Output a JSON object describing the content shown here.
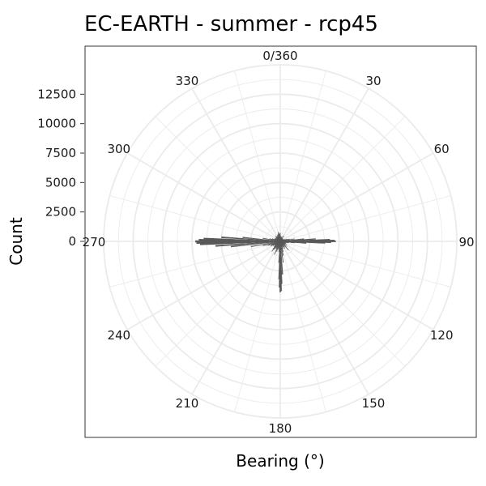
{
  "chart_data": {
    "type": "bar",
    "coord": "polar",
    "title": "EC-EARTH - summer - rcp45",
    "xlabel": "Bearing (°)",
    "ylabel": "Count",
    "y_ticks": [
      "0",
      "2500",
      "5000",
      "7500",
      "10000",
      "12500"
    ],
    "ylim": [
      0,
      15000
    ],
    "bearing_ticks": [
      "0/360",
      "30",
      "60",
      "90",
      "120",
      "150",
      "180",
      "210",
      "240",
      "270",
      "300",
      "330"
    ],
    "bin_width_deg": 1,
    "bearings": [
      0,
      4,
      8,
      12,
      16,
      20,
      24,
      28,
      32,
      36,
      40,
      44,
      48,
      52,
      56,
      60,
      64,
      68,
      72,
      76,
      80,
      84,
      86,
      88,
      89,
      90,
      91,
      92,
      94,
      96,
      100,
      104,
      108,
      112,
      116,
      120,
      124,
      128,
      132,
      136,
      140,
      144,
      148,
      152,
      156,
      160,
      164,
      168,
      172,
      176,
      178,
      179,
      180,
      181,
      182,
      184,
      188,
      192,
      196,
      200,
      204,
      208,
      212,
      216,
      220,
      224,
      228,
      232,
      236,
      240,
      244,
      248,
      252,
      256,
      260,
      264,
      266,
      268,
      269,
      270,
      271,
      272,
      274,
      276,
      280,
      284,
      288,
      292,
      296,
      300,
      304,
      308,
      312,
      316,
      320,
      324,
      328,
      332,
      336,
      340,
      344,
      348,
      352,
      356
    ],
    "values": [
      700,
      450,
      350,
      380,
      300,
      420,
      250,
      300,
      550,
      300,
      250,
      300,
      200,
      250,
      300,
      300,
      350,
      450,
      600,
      800,
      1200,
      2000,
      3000,
      4200,
      4600,
      4700,
      4300,
      3800,
      2200,
      1200,
      700,
      500,
      450,
      500,
      600,
      400,
      450,
      700,
      500,
      1000,
      350,
      600,
      700,
      500,
      400,
      650,
      900,
      1200,
      1800,
      2800,
      3600,
      4200,
      4300,
      3900,
      3200,
      1800,
      900,
      700,
      600,
      900,
      1200,
      700,
      600,
      800,
      1100,
      900,
      700,
      600,
      500,
      700,
      900,
      800,
      1100,
      1500,
      2500,
      4200,
      5500,
      6800,
      7100,
      7200,
      6900,
      6500,
      5000,
      3200,
      1500,
      900,
      700,
      500,
      450,
      500,
      400,
      450,
      500,
      400,
      600,
      500,
      450,
      500,
      600,
      550,
      650,
      800,
      700,
      600
    ],
    "grid": true,
    "bar_color": "#595959",
    "grid_color": "#ebebeb",
    "panel_border_color": "#333333"
  }
}
